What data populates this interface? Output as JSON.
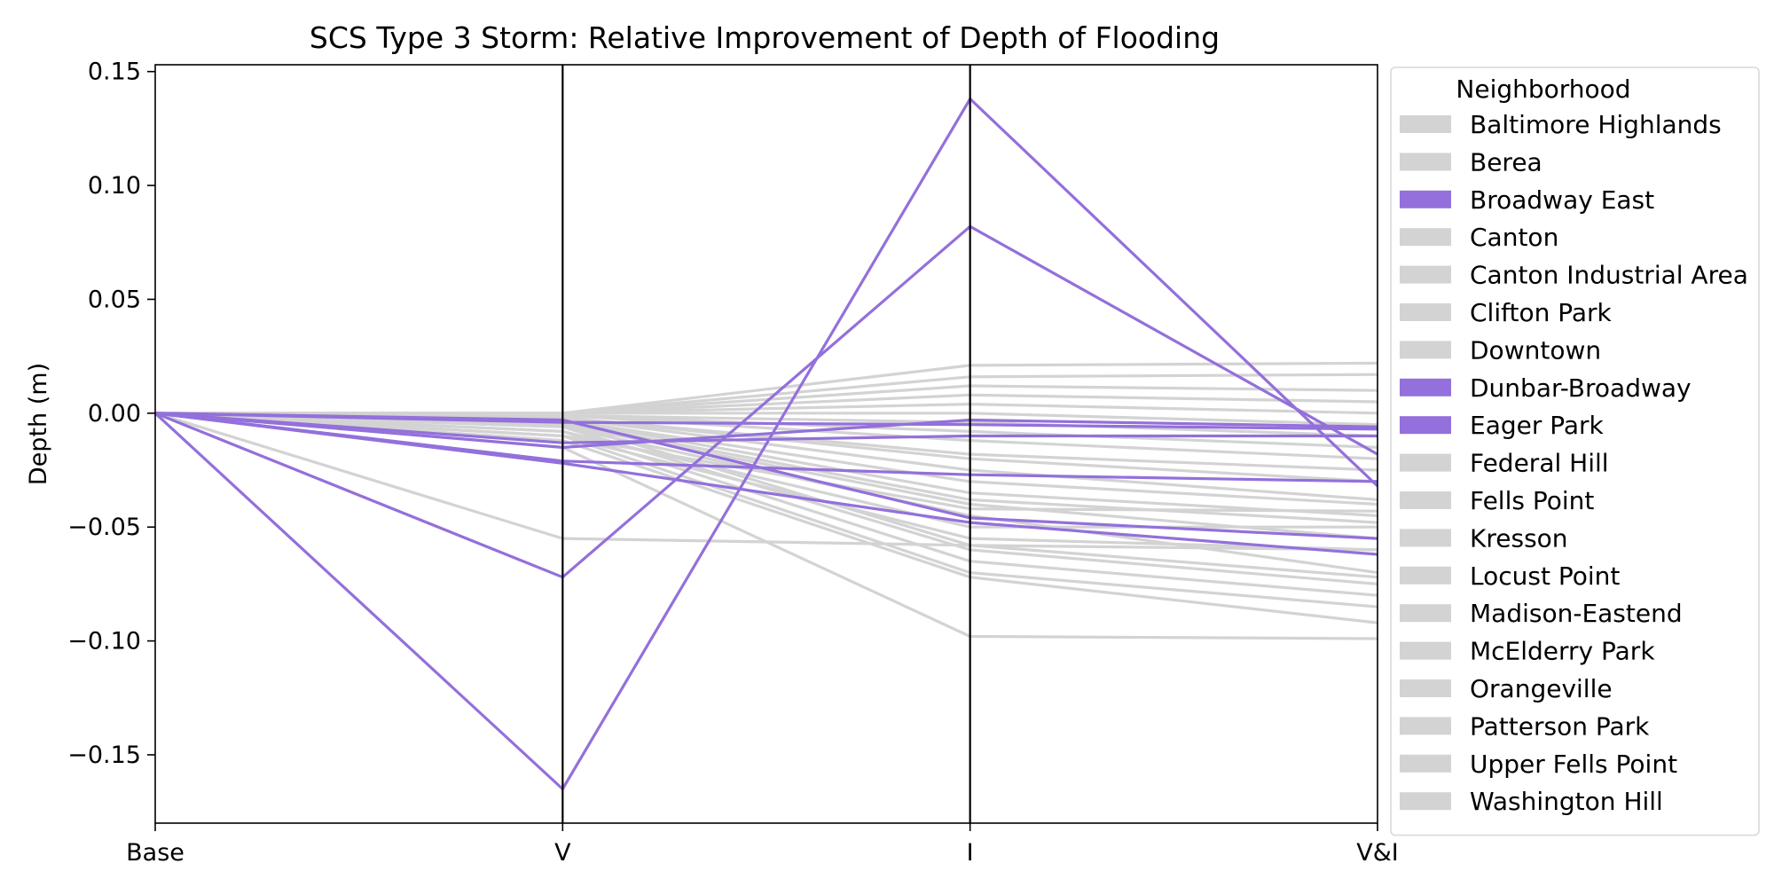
{
  "chart_data": {
    "type": "line",
    "subtype": "parallel-coordinates",
    "title": "SCS Type 3 Storm: Relative Improvement of Depth of Flooding",
    "xlabel": "",
    "ylabel": "Depth (m)",
    "x": [
      "Base",
      "V",
      "I",
      "V&I"
    ],
    "ylim": [
      -0.18,
      0.153
    ],
    "yticks": [
      0.15,
      0.1,
      0.05,
      0.0,
      -0.05,
      -0.1,
      -0.15
    ],
    "ytick_labels": [
      "0.15",
      "0.10",
      "0.05",
      "0.00",
      "−0.05",
      "−0.10",
      "−0.15"
    ],
    "grid": false,
    "legend": {
      "title": "Neighborhood",
      "placement": "right, outside plot",
      "entries": [
        {
          "name": "Baltimore Highlands",
          "color": "#d3d3d3"
        },
        {
          "name": "Berea",
          "color": "#d3d3d3"
        },
        {
          "name": "Broadway East",
          "color": "#9370db"
        },
        {
          "name": "Canton",
          "color": "#d3d3d3"
        },
        {
          "name": "Canton Industrial Area",
          "color": "#d3d3d3"
        },
        {
          "name": "Clifton Park",
          "color": "#d3d3d3"
        },
        {
          "name": "Downtown",
          "color": "#d3d3d3"
        },
        {
          "name": "Dunbar-Broadway",
          "color": "#9370db"
        },
        {
          "name": "Eager Park",
          "color": "#9370db"
        },
        {
          "name": "Federal Hill",
          "color": "#d3d3d3"
        },
        {
          "name": "Fells Point",
          "color": "#d3d3d3"
        },
        {
          "name": "Kresson",
          "color": "#d3d3d3"
        },
        {
          "name": "Locust Point",
          "color": "#d3d3d3"
        },
        {
          "name": "Madison-Eastend",
          "color": "#d3d3d3"
        },
        {
          "name": "McElderry Park",
          "color": "#d3d3d3"
        },
        {
          "name": "Orangeville",
          "color": "#d3d3d3"
        },
        {
          "name": "Patterson Park",
          "color": "#d3d3d3"
        },
        {
          "name": "Upper Fells Point",
          "color": "#d3d3d3"
        },
        {
          "name": "Washington Hill",
          "color": "#d3d3d3"
        }
      ]
    },
    "colors": {
      "highlight": "#9370db",
      "other": "#d3d3d3",
      "axis": "#000000"
    },
    "series": [
      {
        "group": "other",
        "values": [
          0,
          -0.01,
          -0.055,
          -0.06
        ]
      },
      {
        "group": "other",
        "values": [
          0,
          -0.055,
          -0.058,
          -0.06
        ]
      },
      {
        "group": "other",
        "values": [
          0,
          -0.015,
          -0.098,
          -0.099
        ]
      },
      {
        "group": "other",
        "values": [
          0,
          -0.012,
          -0.072,
          -0.092
        ]
      },
      {
        "group": "other",
        "values": [
          0,
          -0.01,
          -0.07,
          -0.085
        ]
      },
      {
        "group": "other",
        "values": [
          0,
          -0.008,
          -0.065,
          -0.08
        ]
      },
      {
        "group": "other",
        "values": [
          0,
          -0.006,
          -0.06,
          -0.075
        ]
      },
      {
        "group": "other",
        "values": [
          0,
          -0.004,
          -0.058,
          -0.072
        ]
      },
      {
        "group": "other",
        "values": [
          0,
          -0.006,
          -0.045,
          -0.07
        ]
      },
      {
        "group": "other",
        "values": [
          0,
          -0.005,
          -0.04,
          -0.055
        ]
      },
      {
        "group": "other",
        "values": [
          0,
          -0.004,
          -0.038,
          -0.048
        ]
      },
      {
        "group": "other",
        "values": [
          0,
          -0.003,
          -0.035,
          -0.045
        ]
      },
      {
        "group": "other",
        "values": [
          0,
          -0.003,
          -0.03,
          -0.04
        ]
      },
      {
        "group": "other",
        "values": [
          0,
          -0.002,
          -0.025,
          -0.038
        ]
      },
      {
        "group": "other",
        "values": [
          0,
          -0.002,
          -0.02,
          -0.03
        ]
      },
      {
        "group": "other",
        "values": [
          0,
          -0.002,
          -0.018,
          -0.025
        ]
      },
      {
        "group": "other",
        "values": [
          0,
          -0.001,
          -0.012,
          -0.02
        ]
      },
      {
        "group": "other",
        "values": [
          0,
          -0.001,
          -0.008,
          -0.015
        ]
      },
      {
        "group": "other",
        "values": [
          0,
          -0.001,
          -0.004,
          -0.01
        ]
      },
      {
        "group": "other",
        "values": [
          0,
          0.0,
          0.0,
          -0.005
        ]
      },
      {
        "group": "other",
        "values": [
          0,
          0.0,
          0.004,
          0.0
        ]
      },
      {
        "group": "other",
        "values": [
          0,
          0.0,
          0.008,
          0.005
        ]
      },
      {
        "group": "other",
        "values": [
          0,
          0.0,
          0.012,
          0.01
        ]
      },
      {
        "group": "other",
        "values": [
          0,
          0.0,
          0.016,
          0.017
        ]
      },
      {
        "group": "other",
        "values": [
          0,
          0.0,
          0.021,
          0.022
        ]
      },
      {
        "group": "other",
        "values": [
          0,
          -0.008,
          -0.05,
          -0.05
        ]
      },
      {
        "group": "other",
        "values": [
          0,
          -0.01,
          -0.042,
          -0.043
        ]
      },
      {
        "group": "highlight",
        "values": [
          0,
          -0.165,
          0.138,
          -0.032
        ]
      },
      {
        "group": "highlight",
        "values": [
          0,
          -0.072,
          0.082,
          -0.018
        ]
      },
      {
        "group": "highlight",
        "values": [
          0,
          -0.022,
          -0.048,
          -0.062
        ]
      },
      {
        "group": "highlight",
        "values": [
          0,
          -0.021,
          -0.027,
          -0.03
        ]
      },
      {
        "group": "highlight",
        "values": [
          0,
          -0.013,
          -0.01,
          -0.01
        ]
      },
      {
        "group": "highlight",
        "values": [
          0,
          -0.004,
          -0.005,
          -0.007
        ]
      },
      {
        "group": "highlight",
        "values": [
          0,
          -0.003,
          -0.046,
          -0.055
        ]
      },
      {
        "group": "highlight",
        "values": [
          0,
          -0.015,
          -0.003,
          -0.006
        ]
      }
    ]
  }
}
